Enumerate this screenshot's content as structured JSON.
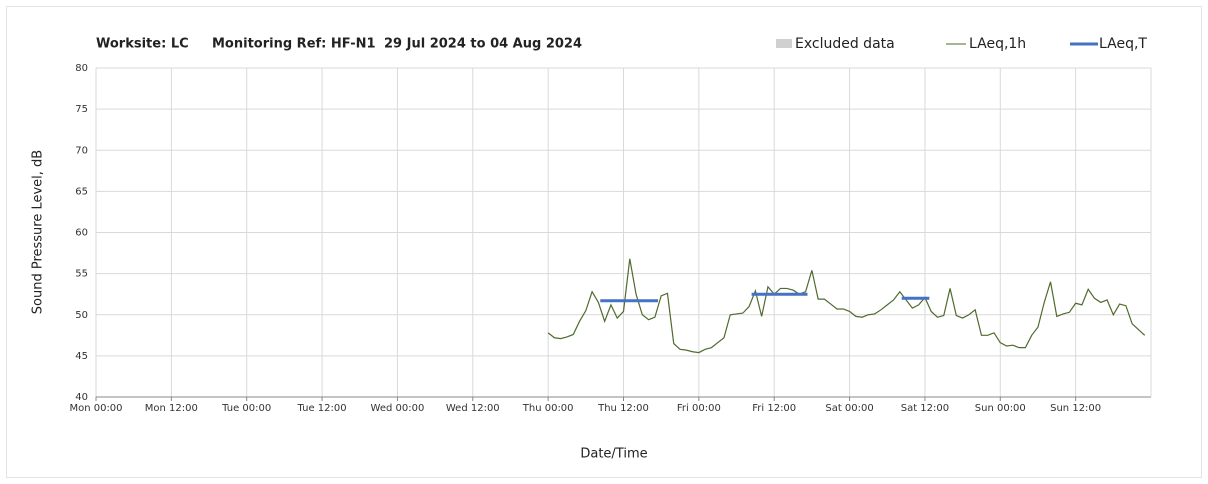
{
  "chart_data": {
    "type": "line",
    "title_parts": [
      "Worksite: LC",
      "Monitoring Ref: HF-N1",
      "29 Jul 2024 to 04 Aug 2024"
    ],
    "xlabel": "Date/Time",
    "ylabel": "Sound Pressure Level, dB",
    "xlim": [
      0,
      168
    ],
    "xticks": [
      {
        "value": 0,
        "label": "Mon 00:00"
      },
      {
        "value": 12,
        "label": "Mon 12:00"
      },
      {
        "value": 24,
        "label": "Tue 00:00"
      },
      {
        "value": 36,
        "label": "Tue 12:00"
      },
      {
        "value": 48,
        "label": "Wed 00:00"
      },
      {
        "value": 60,
        "label": "Wed 12:00"
      },
      {
        "value": 72,
        "label": "Thu 00:00"
      },
      {
        "value": 84,
        "label": "Thu 12:00"
      },
      {
        "value": 96,
        "label": "Fri 00:00"
      },
      {
        "value": 108,
        "label": "Fri 12:00"
      },
      {
        "value": 120,
        "label": "Sat 00:00"
      },
      {
        "value": 132,
        "label": "Sat 12:00"
      },
      {
        "value": 144,
        "label": "Sun 00:00"
      },
      {
        "value": 156,
        "label": "Sun 12:00"
      }
    ],
    "ylim": [
      40,
      80
    ],
    "yticks": [
      40,
      45,
      50,
      55,
      60,
      65,
      70,
      75,
      80
    ],
    "grid": true,
    "legend": [
      {
        "name": "Excluded data",
        "color": "#d0d0d0"
      }
    ],
    "series": [
      {
        "name": "LAeq,1h",
        "color": "#4f6b2f",
        "x": [
          72,
          73,
          74,
          75,
          76,
          77,
          78,
          79,
          80,
          81,
          82,
          83,
          84,
          85,
          86,
          87,
          88,
          89,
          90,
          91,
          92,
          93,
          94,
          95,
          96,
          97,
          98,
          99,
          100,
          101,
          102,
          103,
          104,
          105,
          106,
          107,
          108,
          109,
          110,
          111,
          112,
          113,
          114,
          115,
          116,
          117,
          118,
          119,
          120,
          121,
          122,
          123,
          124,
          125,
          126,
          127,
          128,
          129,
          130,
          131,
          132,
          133,
          134,
          135,
          136,
          137,
          138,
          139,
          140,
          141,
          142,
          143,
          144,
          145,
          146,
          147,
          148,
          149,
          150,
          151,
          152,
          153,
          154,
          155,
          156,
          157,
          158,
          159,
          160,
          161,
          162,
          163,
          164,
          165,
          166,
          167
        ],
        "values": [
          47.8,
          47.2,
          47.1,
          47.3,
          47.6,
          49.2,
          50.5,
          52.8,
          51.5,
          49.2,
          51.2,
          49.6,
          50.4,
          56.8,
          52.5,
          50.0,
          49.4,
          49.7,
          52.3,
          52.6,
          46.5,
          45.8,
          45.7,
          45.5,
          45.4,
          45.8,
          46.0,
          46.6,
          47.2,
          50.0,
          50.1,
          50.2,
          51.0,
          52.9,
          49.8,
          53.4,
          52.5,
          53.2,
          53.2,
          53.0,
          52.5,
          52.8,
          55.4,
          51.9,
          51.9,
          51.3,
          50.7,
          50.7,
          50.4,
          49.8,
          49.7,
          50.0,
          50.1,
          50.6,
          51.2,
          51.8,
          52.8,
          51.8,
          50.8,
          51.2,
          52.1,
          50.4,
          49.7,
          49.9,
          53.2,
          49.9,
          49.6,
          50.0,
          50.6,
          47.5,
          47.5,
          47.8,
          46.6,
          46.2,
          46.3,
          46.0,
          46.0,
          47.5,
          48.5,
          51.5,
          54.0,
          49.8,
          50.1,
          50.3,
          51.4,
          51.2,
          53.1,
          52.0,
          51.5,
          51.8,
          50.0,
          51.3,
          51.1,
          48.9,
          48.2,
          47.5
        ]
      },
      {
        "name": "LAeq,T",
        "color": "#4472c4",
        "segments": [
          {
            "start": 80.3,
            "end": 89.5,
            "value": 51.7
          },
          {
            "start": 104.4,
            "end": 113.3,
            "value": 52.5
          },
          {
            "start": 128.3,
            "end": 132.7,
            "value": 52.0
          }
        ]
      }
    ]
  }
}
